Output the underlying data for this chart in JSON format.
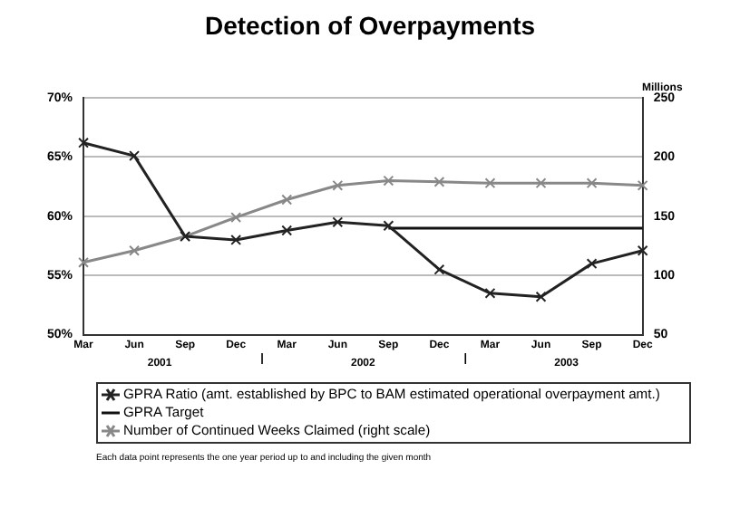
{
  "chart_data": {
    "type": "line",
    "title": "Detection of Overpayments",
    "y2label": "Millions",
    "categories": [
      "Mar",
      "Jun",
      "Sep",
      "Dec",
      "Mar",
      "Jun",
      "Sep",
      "Dec",
      "Mar",
      "Jun",
      "Sep",
      "Dec"
    ],
    "series": [
      {
        "name": "GPRA Ratio (amt. established by BPC to BAM estimated operational overpayment amt.)",
        "color": "#222222",
        "marker": "cross",
        "values": [
          66.2,
          65.1,
          58.3,
          58.0,
          58.8,
          59.5,
          59.2,
          55.5,
          53.5,
          53.2,
          56.0,
          57.1
        ]
      },
      {
        "name": "GPRA Target",
        "color": "#111111",
        "marker": "none",
        "values": [
          null,
          null,
          null,
          null,
          null,
          null,
          59,
          59,
          59,
          59,
          59,
          59
        ]
      },
      {
        "name": "Number of Continued Weeks Claimed (right scale)",
        "color": "#888888",
        "marker": "cross",
        "axis": "y2",
        "values": [
          111,
          121,
          133,
          149,
          164,
          176,
          180,
          179,
          178,
          178,
          178,
          176
        ]
      }
    ],
    "ylim": [
      50,
      70
    ],
    "yticks": [
      {
        "value": 50,
        "label": "50%"
      },
      {
        "value": 55,
        "label": "55%"
      },
      {
        "value": 60,
        "label": "60%"
      },
      {
        "value": 65,
        "label": "65%"
      },
      {
        "value": 70,
        "label": "70%"
      }
    ],
    "y2lim": [
      50,
      250
    ],
    "y2ticks": [
      50,
      100,
      150,
      200,
      250
    ],
    "grid": "y",
    "legend": "bottom",
    "annotations": [
      "2001",
      "2002",
      "2003",
      "Each data point represents the one year period up to and including the given month"
    ]
  }
}
